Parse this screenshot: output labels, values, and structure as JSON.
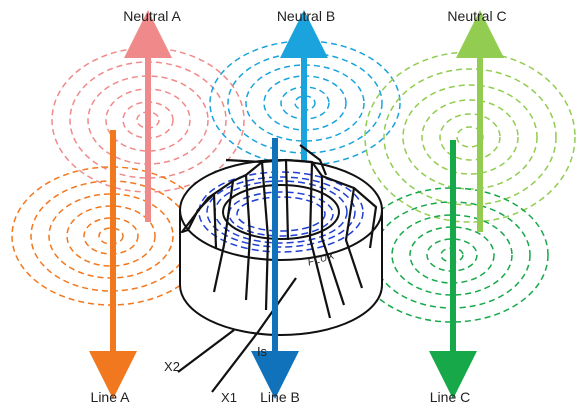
{
  "labels": {
    "neutral_a": "Neutral A",
    "neutral_b": "Neutral B",
    "neutral_c": "Neutral C",
    "line_a": "Line A",
    "line_b": "Line B",
    "line_c": "Line C",
    "x1": "X1",
    "x2": "X2",
    "is": "Is",
    "flux": "FLUX"
  },
  "colors": {
    "neutral_a": "#f08a8a",
    "neutral_b": "#1aa3dd",
    "neutral_c": "#92cc50",
    "line_a": "#f2781f",
    "line_b": "#1072bb",
    "line_c": "#17a84a",
    "core_flux": "#1f3fd0",
    "winding": "#111111",
    "core_outline": "#111111"
  }
}
